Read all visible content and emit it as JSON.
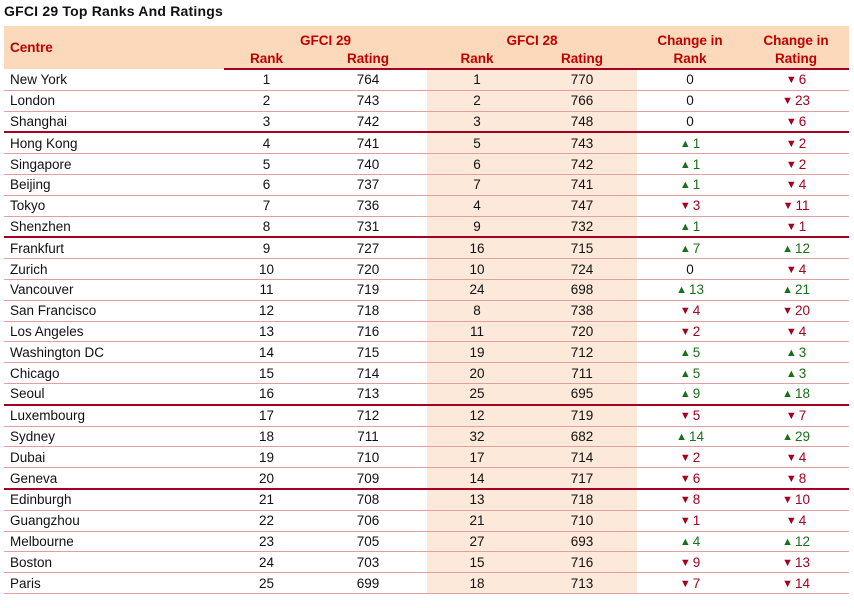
{
  "title": "GFCI 29 Top Ranks And Ratings",
  "headers": {
    "centre": "Centre",
    "gfci29": "GFCI 29",
    "gfci28": "GFCI 28",
    "change_rank_line1": "Change in",
    "change_rank_line2": "Rank",
    "change_rating_line1": "Change in",
    "change_rating_line2": "Rating",
    "rank": "Rank",
    "rating": "Rating"
  },
  "rows": [
    {
      "centre": "New York",
      "rank29": "1",
      "rating29": "764",
      "rank28": "1",
      "rating28": "770",
      "chrank": {
        "dir": "none",
        "val": "0"
      },
      "chrating": {
        "dir": "down",
        "val": "6"
      }
    },
    {
      "centre": "London",
      "rank29": "2",
      "rating29": "743",
      "rank28": "2",
      "rating28": "766",
      "chrank": {
        "dir": "none",
        "val": "0"
      },
      "chrating": {
        "dir": "down",
        "val": "23"
      }
    },
    {
      "centre": "Shanghai",
      "rank29": "3",
      "rating29": "742",
      "rank28": "3",
      "rating28": "748",
      "chrank": {
        "dir": "none",
        "val": "0"
      },
      "chrating": {
        "dir": "down",
        "val": "6"
      }
    },
    {
      "centre": "Hong Kong",
      "rank29": "4",
      "rating29": "741",
      "rank28": "5",
      "rating28": "743",
      "chrank": {
        "dir": "up",
        "val": "1"
      },
      "chrating": {
        "dir": "down",
        "val": "2"
      }
    },
    {
      "centre": "Singapore",
      "rank29": "5",
      "rating29": "740",
      "rank28": "6",
      "rating28": "742",
      "chrank": {
        "dir": "up",
        "val": "1"
      },
      "chrating": {
        "dir": "down",
        "val": "2"
      }
    },
    {
      "centre": "Beijing",
      "rank29": "6",
      "rating29": "737",
      "rank28": "7",
      "rating28": "741",
      "chrank": {
        "dir": "up",
        "val": "1"
      },
      "chrating": {
        "dir": "down",
        "val": "4"
      }
    },
    {
      "centre": "Tokyo",
      "rank29": "7",
      "rating29": "736",
      "rank28": "4",
      "rating28": "747",
      "chrank": {
        "dir": "down",
        "val": "3"
      },
      "chrating": {
        "dir": "down",
        "val": "11"
      }
    },
    {
      "centre": "Shenzhen",
      "rank29": "8",
      "rating29": "731",
      "rank28": "9",
      "rating28": "732",
      "chrank": {
        "dir": "up",
        "val": "1"
      },
      "chrating": {
        "dir": "down",
        "val": "1"
      }
    },
    {
      "centre": "Frankfurt",
      "rank29": "9",
      "rating29": "727",
      "rank28": "16",
      "rating28": "715",
      "chrank": {
        "dir": "up",
        "val": "7"
      },
      "chrating": {
        "dir": "up",
        "val": "12"
      }
    },
    {
      "centre": "Zurich",
      "rank29": "10",
      "rating29": "720",
      "rank28": "10",
      "rating28": "724",
      "chrank": {
        "dir": "none",
        "val": "0"
      },
      "chrating": {
        "dir": "down",
        "val": "4"
      }
    },
    {
      "centre": "Vancouver",
      "rank29": "11",
      "rating29": "719",
      "rank28": "24",
      "rating28": "698",
      "chrank": {
        "dir": "up",
        "val": "13"
      },
      "chrating": {
        "dir": "up",
        "val": "21"
      }
    },
    {
      "centre": "San Francisco",
      "rank29": "12",
      "rating29": "718",
      "rank28": "8",
      "rating28": "738",
      "chrank": {
        "dir": "down",
        "val": "4"
      },
      "chrating": {
        "dir": "down",
        "val": "20"
      }
    },
    {
      "centre": "Los Angeles",
      "rank29": "13",
      "rating29": "716",
      "rank28": "11",
      "rating28": "720",
      "chrank": {
        "dir": "down",
        "val": "2"
      },
      "chrating": {
        "dir": "down",
        "val": "4"
      }
    },
    {
      "centre": "Washington DC",
      "rank29": "14",
      "rating29": "715",
      "rank28": "19",
      "rating28": "712",
      "chrank": {
        "dir": "up",
        "val": "5"
      },
      "chrating": {
        "dir": "up",
        "val": "3"
      }
    },
    {
      "centre": "Chicago",
      "rank29": "15",
      "rating29": "714",
      "rank28": "20",
      "rating28": "711",
      "chrank": {
        "dir": "up",
        "val": "5"
      },
      "chrating": {
        "dir": "up",
        "val": "3"
      }
    },
    {
      "centre": "Seoul",
      "rank29": "16",
      "rating29": "713",
      "rank28": "25",
      "rating28": "695",
      "chrank": {
        "dir": "up",
        "val": "9"
      },
      "chrating": {
        "dir": "up",
        "val": "18"
      }
    },
    {
      "centre": "Luxembourg",
      "rank29": "17",
      "rating29": "712",
      "rank28": "12",
      "rating28": "719",
      "chrank": {
        "dir": "down",
        "val": "5"
      },
      "chrating": {
        "dir": "down",
        "val": "7"
      }
    },
    {
      "centre": "Sydney",
      "rank29": "18",
      "rating29": "711",
      "rank28": "32",
      "rating28": "682",
      "chrank": {
        "dir": "up",
        "val": "14"
      },
      "chrating": {
        "dir": "up",
        "val": "29"
      }
    },
    {
      "centre": "Dubai",
      "rank29": "19",
      "rating29": "710",
      "rank28": "17",
      "rating28": "714",
      "chrank": {
        "dir": "down",
        "val": "2"
      },
      "chrating": {
        "dir": "down",
        "val": "4"
      }
    },
    {
      "centre": "Geneva",
      "rank29": "20",
      "rating29": "709",
      "rank28": "14",
      "rating28": "717",
      "chrank": {
        "dir": "down",
        "val": "6"
      },
      "chrating": {
        "dir": "down",
        "val": "8"
      }
    },
    {
      "centre": "Edinburgh",
      "rank29": "21",
      "rating29": "708",
      "rank28": "13",
      "rating28": "718",
      "chrank": {
        "dir": "down",
        "val": "8"
      },
      "chrating": {
        "dir": "down",
        "val": "10"
      }
    },
    {
      "centre": "Guangzhou",
      "rank29": "22",
      "rating29": "706",
      "rank28": "21",
      "rating28": "710",
      "chrank": {
        "dir": "down",
        "val": "1"
      },
      "chrating": {
        "dir": "down",
        "val": "4"
      }
    },
    {
      "centre": "Melbourne",
      "rank29": "23",
      "rating29": "705",
      "rank28": "27",
      "rating28": "693",
      "chrank": {
        "dir": "up",
        "val": "4"
      },
      "chrating": {
        "dir": "up",
        "val": "12"
      }
    },
    {
      "centre": "Boston",
      "rank29": "24",
      "rating29": "703",
      "rank28": "15",
      "rating28": "716",
      "chrank": {
        "dir": "down",
        "val": "9"
      },
      "chrating": {
        "dir": "down",
        "val": "13"
      }
    },
    {
      "centre": "Paris",
      "rank29": "25",
      "rating29": "699",
      "rank28": "18",
      "rating28": "713",
      "chrank": {
        "dir": "down",
        "val": "7"
      },
      "chrating": {
        "dir": "down",
        "val": "14"
      }
    }
  ],
  "colors": {
    "up": "#1b6e1b",
    "down": "#a50021",
    "header_bg": "#fcd9bb",
    "shade": "#fde9d9"
  }
}
